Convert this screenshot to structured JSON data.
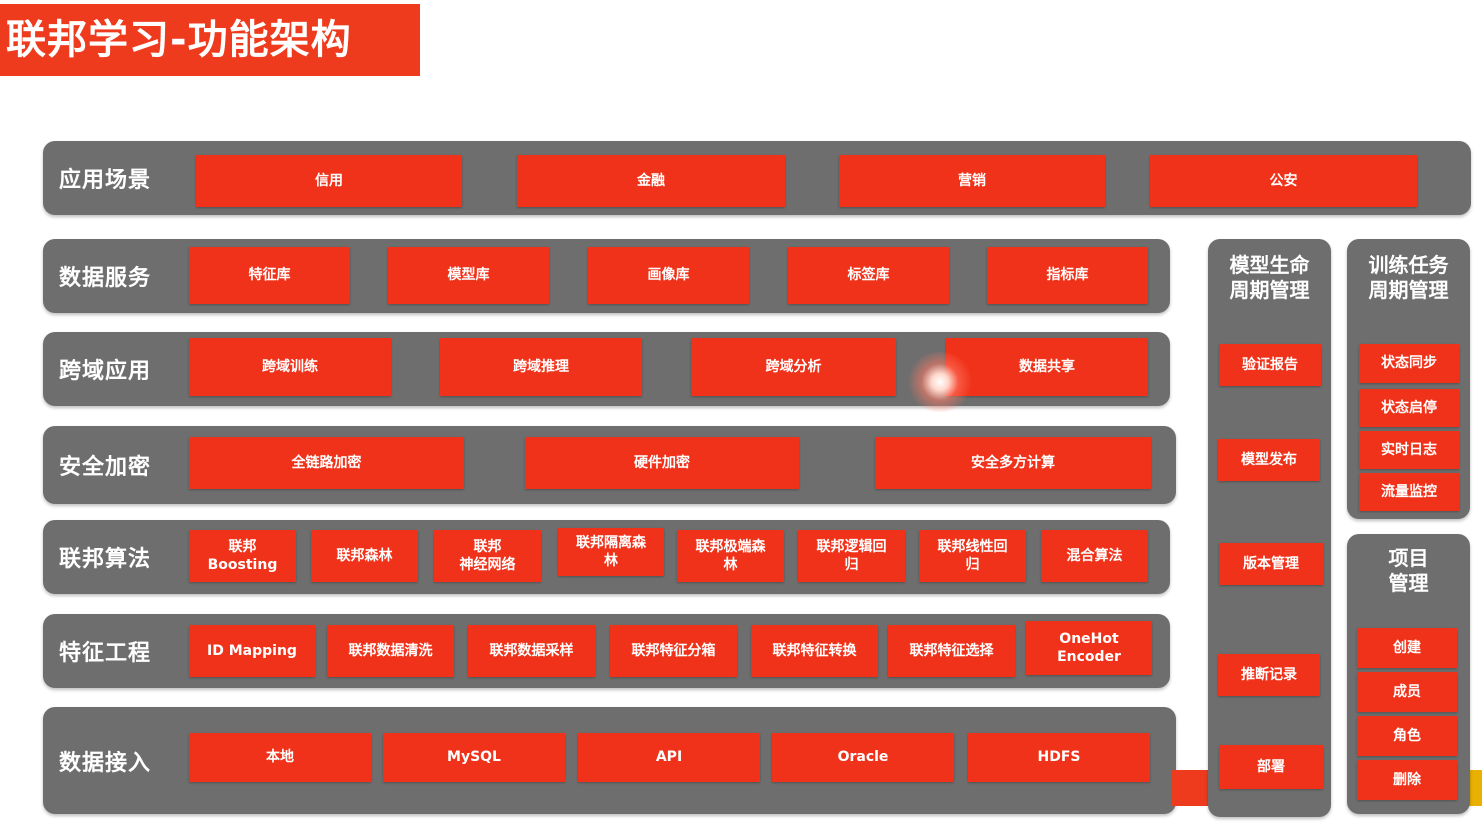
{
  "title": "联邦学习-功能架构",
  "rows": {
    "scenario": {
      "label": "应用场景",
      "items": [
        "信用",
        "金融",
        "营销",
        "公安"
      ]
    },
    "data_service": {
      "label": "数据服务",
      "items": [
        "特征库",
        "模型库",
        "画像库",
        "标签库",
        "指标库"
      ]
    },
    "cross_domain": {
      "label": "跨域应用",
      "items": [
        "跨域训练",
        "跨域推理",
        "跨域分析",
        "数据共享"
      ]
    },
    "security": {
      "label": "安全加密",
      "items": [
        "全链路加密",
        "硬件加密",
        "安全多方计算"
      ]
    },
    "algorithms": {
      "label": "联邦算法",
      "items": [
        "联邦\nBoosting",
        "联邦森林",
        "联邦\n神经网络",
        "联邦隔离森\n林",
        "联邦极端森\n林",
        "联邦逻辑回\n归",
        "联邦线性回\n归",
        "混合算法"
      ]
    },
    "feature_eng": {
      "label": "特征工程",
      "items": [
        "ID Mapping",
        "联邦数据清洗",
        "联邦数据采样",
        "联邦特征分箱",
        "联邦特征转换",
        "联邦特征选择",
        "OneHot\nEncoder"
      ]
    },
    "data_access": {
      "label": "数据接入",
      "items": [
        "本地",
        "MySQL",
        "API",
        "Oracle",
        "HDFS"
      ]
    }
  },
  "model_lifecycle": {
    "title": "模型生命\n周期管理",
    "items": [
      "验证报告",
      "模型发布",
      "版本管理",
      "推断记录",
      "部署"
    ]
  },
  "task_lifecycle": {
    "title": "训练任务\n周期管理",
    "items": [
      "状态同步",
      "状态启停",
      "实时日志",
      "流量监控"
    ]
  },
  "project_mgmt": {
    "title": "项目\n管理",
    "items": [
      "创建",
      "成员",
      "角色",
      "删除"
    ]
  },
  "colors": {
    "accent": "#f0321a",
    "panel": "#6e6e6e"
  }
}
